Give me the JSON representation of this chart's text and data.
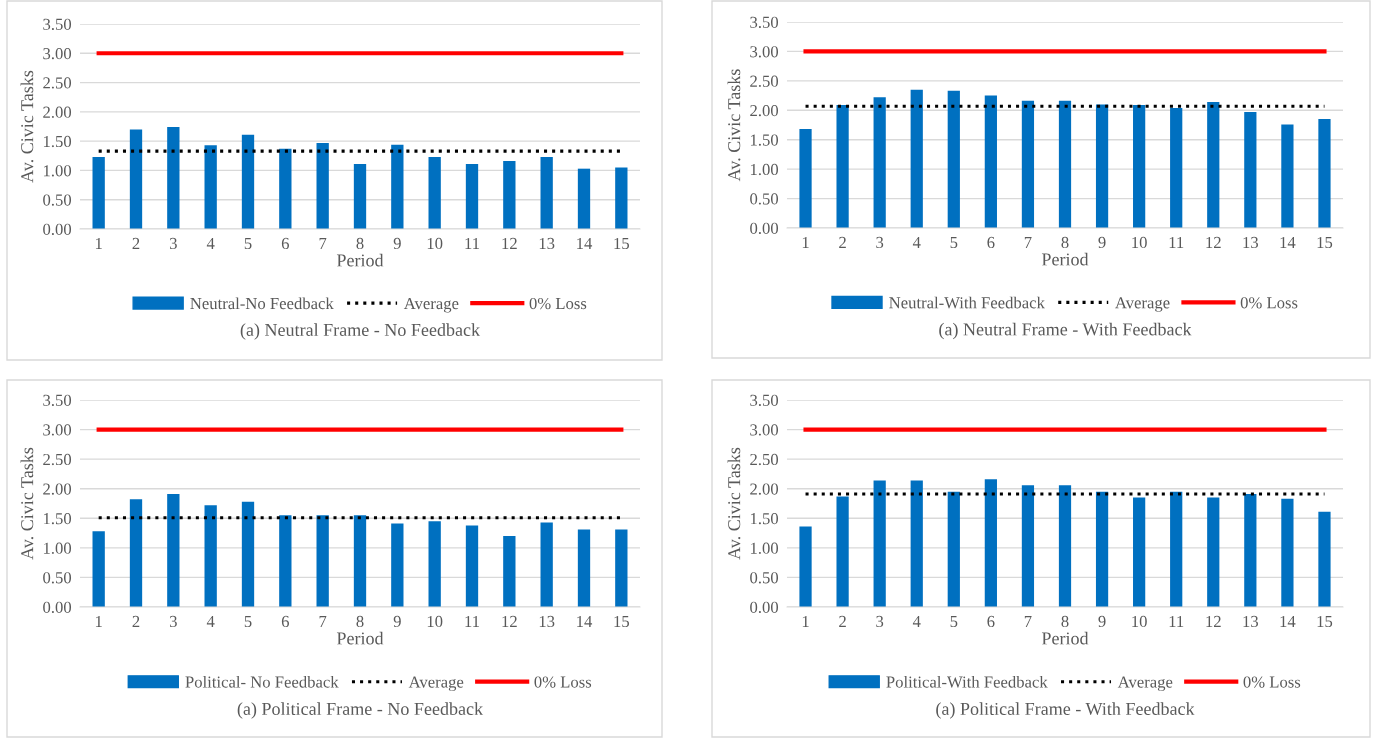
{
  "chart_data": [
    {
      "type": "bar",
      "ylabel": "Av. Civic Tasks",
      "xlabel": "Period",
      "categories": [
        "1",
        "2",
        "3",
        "4",
        "5",
        "6",
        "7",
        "8",
        "9",
        "10",
        "11",
        "12",
        "13",
        "14",
        "15"
      ],
      "ylim": [
        0,
        3.5
      ],
      "yticks": [
        {
          "value": 0,
          "label": "0.00"
        },
        {
          "value": 0.5,
          "label": "0.50"
        },
        {
          "value": 1,
          "label": "1.00"
        },
        {
          "value": 1.5,
          "label": "1.50"
        },
        {
          "value": 2,
          "label": "2.00"
        },
        {
          "value": 2.5,
          "label": "2.50"
        },
        {
          "value": 3,
          "label": "3.00"
        },
        {
          "value": 3.5,
          "label": "3.50"
        }
      ],
      "grid": "y",
      "legend": "bottom",
      "annotations": [
        "(a) Neutral Frame - No Feedback"
      ],
      "series": [
        {
          "name": "Neutral-No Feedback",
          "color": "#0070c0",
          "values": [
            1.23,
            1.7,
            1.74,
            1.43,
            1.61,
            1.37,
            1.47,
            1.11,
            1.44,
            1.23,
            1.11,
            1.16,
            1.23,
            1.03,
            1.05
          ]
        },
        {
          "name": "Average",
          "type": "line",
          "color": "#000000",
          "line_style": "dotted",
          "values": [
            1.33,
            1.33,
            1.33,
            1.33,
            1.33,
            1.33,
            1.33,
            1.33,
            1.33,
            1.33,
            1.33,
            1.33,
            1.33,
            1.33,
            1.33
          ]
        },
        {
          "name": "0% Loss",
          "type": "line",
          "color": "#ff0000",
          "line_style": "solid",
          "values": [
            3,
            3,
            3,
            3,
            3,
            3,
            3,
            3,
            3,
            3,
            3,
            3,
            3,
            3,
            3
          ]
        }
      ]
    },
    {
      "type": "bar",
      "ylabel": "Av. Civic Tasks",
      "xlabel": "Period",
      "categories": [
        "1",
        "2",
        "3",
        "4",
        "5",
        "6",
        "7",
        "8",
        "9",
        "10",
        "11",
        "12",
        "13",
        "14",
        "15"
      ],
      "ylim": [
        0,
        3.5
      ],
      "yticks": [
        {
          "value": 0,
          "label": "0.00"
        },
        {
          "value": 0.5,
          "label": "0.50"
        },
        {
          "value": 1,
          "label": "1.00"
        },
        {
          "value": 1.5,
          "label": "1.50"
        },
        {
          "value": 2,
          "label": "2.00"
        },
        {
          "value": 2.5,
          "label": "2.50"
        },
        {
          "value": 3,
          "label": "3.00"
        },
        {
          "value": 3.5,
          "label": "3.50"
        }
      ],
      "grid": "y",
      "legend": "bottom",
      "annotations": [
        "(a) Neutral Frame - With Feedback"
      ],
      "series": [
        {
          "name": "Neutral-With Feedback",
          "color": "#0070c0",
          "values": [
            1.68,
            2.09,
            2.22,
            2.35,
            2.33,
            2.25,
            2.16,
            2.16,
            2.1,
            2.09,
            2.04,
            2.14,
            1.97,
            1.76,
            1.85
          ]
        },
        {
          "name": "Average",
          "type": "line",
          "color": "#000000",
          "line_style": "dotted",
          "values": [
            2.07,
            2.07,
            2.07,
            2.07,
            2.07,
            2.07,
            2.07,
            2.07,
            2.07,
            2.07,
            2.07,
            2.07,
            2.07,
            2.07,
            2.07
          ]
        },
        {
          "name": "0% Loss",
          "type": "line",
          "color": "#ff0000",
          "line_style": "solid",
          "values": [
            3,
            3,
            3,
            3,
            3,
            3,
            3,
            3,
            3,
            3,
            3,
            3,
            3,
            3,
            3
          ]
        }
      ]
    },
    {
      "type": "bar",
      "ylabel": "Av. Civic Tasks",
      "xlabel": "Period",
      "categories": [
        "1",
        "2",
        "3",
        "4",
        "5",
        "6",
        "7",
        "8",
        "9",
        "10",
        "11",
        "12",
        "13",
        "14",
        "15"
      ],
      "ylim": [
        0,
        3.5
      ],
      "yticks": [
        {
          "value": 0,
          "label": "0.00"
        },
        {
          "value": 0.5,
          "label": "0.50"
        },
        {
          "value": 1,
          "label": "1.00"
        },
        {
          "value": 1.5,
          "label": "1.50"
        },
        {
          "value": 2,
          "label": "2.00"
        },
        {
          "value": 2.5,
          "label": "2.50"
        },
        {
          "value": 3,
          "label": "3.00"
        },
        {
          "value": 3.5,
          "label": "3.50"
        }
      ],
      "grid": "y",
      "legend": "bottom",
      "annotations": [
        "(a) Political Frame - No Feedback"
      ],
      "series": [
        {
          "name": "Political- No Feedback",
          "color": "#0070c0",
          "values": [
            1.28,
            1.82,
            1.91,
            1.72,
            1.78,
            1.55,
            1.55,
            1.55,
            1.41,
            1.45,
            1.38,
            1.2,
            1.43,
            1.31,
            1.31
          ]
        },
        {
          "name": "Average",
          "type": "line",
          "color": "#000000",
          "line_style": "dotted",
          "values": [
            1.51,
            1.51,
            1.51,
            1.51,
            1.51,
            1.51,
            1.51,
            1.51,
            1.51,
            1.51,
            1.51,
            1.51,
            1.51,
            1.51,
            1.51
          ]
        },
        {
          "name": "0% Loss",
          "type": "line",
          "color": "#ff0000",
          "line_style": "solid",
          "values": [
            3,
            3,
            3,
            3,
            3,
            3,
            3,
            3,
            3,
            3,
            3,
            3,
            3,
            3,
            3
          ]
        }
      ]
    },
    {
      "type": "bar",
      "ylabel": "Av. Civic Tasks",
      "xlabel": "Period",
      "categories": [
        "1",
        "2",
        "3",
        "4",
        "5",
        "6",
        "7",
        "8",
        "9",
        "10",
        "11",
        "12",
        "13",
        "14",
        "15"
      ],
      "ylim": [
        0,
        3.5
      ],
      "yticks": [
        {
          "value": 0,
          "label": "0.00"
        },
        {
          "value": 0.5,
          "label": "0.50"
        },
        {
          "value": 1,
          "label": "1.00"
        },
        {
          "value": 1.5,
          "label": "1.50"
        },
        {
          "value": 2,
          "label": "2.00"
        },
        {
          "value": 2.5,
          "label": "2.50"
        },
        {
          "value": 3,
          "label": "3.00"
        },
        {
          "value": 3.5,
          "label": "3.50"
        }
      ],
      "grid": "y",
      "legend": "bottom",
      "annotations": [
        "(a) Political Frame - With Feedback"
      ],
      "series": [
        {
          "name": "Political-With Feedback",
          "color": "#0070c0",
          "values": [
            1.36,
            1.87,
            2.14,
            2.14,
            1.95,
            2.16,
            2.06,
            2.06,
            1.95,
            1.85,
            1.95,
            1.85,
            1.91,
            1.83,
            1.61
          ]
        },
        {
          "name": "Average",
          "type": "line",
          "color": "#000000",
          "line_style": "dotted",
          "values": [
            1.91,
            1.91,
            1.91,
            1.91,
            1.91,
            1.91,
            1.91,
            1.91,
            1.91,
            1.91,
            1.91,
            1.91,
            1.91,
            1.91,
            1.91
          ]
        },
        {
          "name": "0% Loss",
          "type": "line",
          "color": "#ff0000",
          "line_style": "solid",
          "values": [
            3,
            3,
            3,
            3,
            3,
            3,
            3,
            3,
            3,
            3,
            3,
            3,
            3,
            3,
            3
          ]
        }
      ]
    }
  ]
}
